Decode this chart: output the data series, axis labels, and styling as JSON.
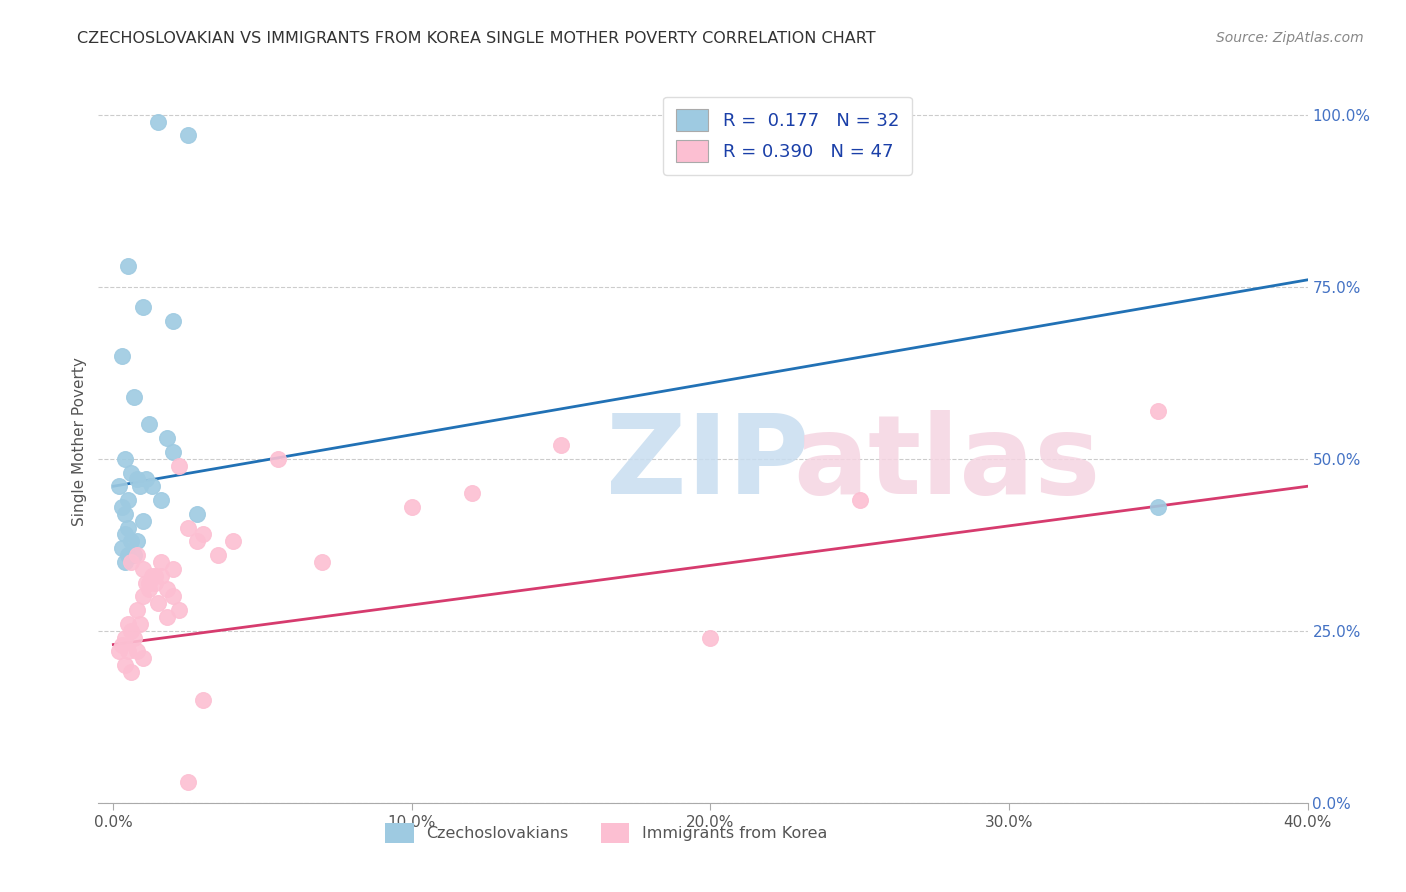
{
  "title": "CZECHOSLOVAKIAN VS IMMIGRANTS FROM KOREA SINGLE MOTHER POVERTY CORRELATION CHART",
  "source": "Source: ZipAtlas.com",
  "xlabel_ticks": [
    "0.0%",
    "10.0%",
    "20.0%",
    "30.0%",
    "40.0%"
  ],
  "xlabel_tick_vals": [
    0,
    10,
    20,
    30,
    40
  ],
  "ylabel_ticks": [
    "0.0%",
    "25.0%",
    "50.0%",
    "75.0%",
    "100.0%"
  ],
  "ylabel_tick_vals": [
    0,
    25,
    50,
    75,
    100
  ],
  "ylabel_label": "Single Mother Poverty",
  "xlim": [
    -0.5,
    40
  ],
  "ylim": [
    0,
    105
  ],
  "R1": 0.177,
  "N1": 32,
  "R2": 0.39,
  "N2": 47,
  "blue_color": "#9ecae1",
  "pink_color": "#fcbfd2",
  "blue_line_color": "#2171b5",
  "pink_line_color": "#d63b6e",
  "blue_scatter_x": [
    1.5,
    2.5,
    0.5,
    1.0,
    2.0,
    0.3,
    0.7,
    1.2,
    1.8,
    0.4,
    0.6,
    0.8,
    1.1,
    1.3,
    0.2,
    0.9,
    0.5,
    0.3,
    0.4,
    2.8,
    1.0,
    0.5,
    0.4,
    0.6,
    0.8,
    0.3,
    0.5,
    0.7,
    0.4,
    1.6,
    35.0,
    2.0
  ],
  "blue_scatter_y": [
    99,
    97,
    78,
    72,
    70,
    65,
    59,
    55,
    53,
    50,
    48,
    47,
    47,
    46,
    46,
    46,
    44,
    43,
    42,
    42,
    41,
    40,
    39,
    38,
    38,
    37,
    36,
    36,
    35,
    44,
    43,
    51
  ],
  "pink_scatter_x": [
    0.2,
    0.4,
    0.5,
    0.6,
    0.8,
    1.0,
    1.2,
    1.5,
    1.8,
    2.0,
    0.3,
    0.5,
    0.7,
    0.9,
    1.1,
    1.3,
    0.6,
    0.8,
    1.0,
    2.5,
    3.0,
    1.4,
    1.6,
    2.2,
    2.8,
    3.5,
    4.0,
    5.5,
    7.0,
    10.0,
    15.0,
    20.0,
    25.0,
    35.0,
    0.4,
    0.6,
    0.8,
    1.0,
    1.2,
    1.4,
    1.6,
    1.8,
    2.0,
    2.2,
    2.5,
    3.0,
    12.0
  ],
  "pink_scatter_y": [
    22,
    24,
    26,
    25,
    28,
    30,
    32,
    29,
    27,
    34,
    23,
    22,
    24,
    26,
    32,
    33,
    35,
    36,
    34,
    40,
    39,
    33,
    33,
    49,
    38,
    36,
    38,
    50,
    35,
    43,
    52,
    24,
    44,
    57,
    20,
    19,
    22,
    21,
    31,
    32,
    35,
    31,
    30,
    28,
    3,
    15,
    45
  ],
  "blue_line_x0": 0,
  "blue_line_y0": 46,
  "blue_line_x1": 40,
  "blue_line_y1": 76,
  "pink_line_x0": 0,
  "pink_line_y0": 23,
  "pink_line_x1": 40,
  "pink_line_y1": 46
}
